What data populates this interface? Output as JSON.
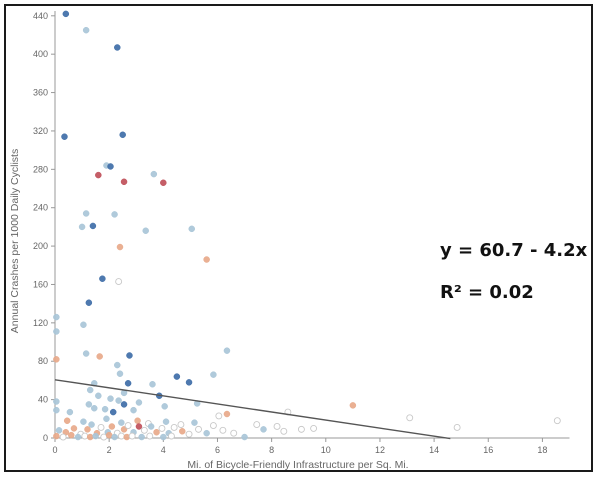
{
  "chart_data": {
    "type": "scatter",
    "xlabel": "Mi. of Bicycle-Friendly Infrastructure per Sq. Mi.",
    "ylabel": "Annual Crashes per 1000 Daily Cyclists",
    "xlim": [
      0,
      19
    ],
    "ylim": [
      0,
      445
    ],
    "x_ticks": [
      0,
      2,
      4,
      6,
      8,
      10,
      12,
      14,
      16,
      18
    ],
    "y_ticks": [
      0,
      40,
      80,
      120,
      160,
      200,
      240,
      280,
      320,
      360,
      400,
      440
    ],
    "grid": false,
    "legend": "none",
    "point_colors": {
      "dark_blue": "#3f6ea8",
      "light_blue": "#a9c6d8",
      "salmon": "#e8a98a",
      "red": "#c0505a",
      "hollow": "#c8c8c8"
    },
    "points": [
      {
        "x": 0.4,
        "y": 442,
        "c": "dark_blue"
      },
      {
        "x": 1.15,
        "y": 425,
        "c": "light_blue"
      },
      {
        "x": 2.3,
        "y": 407,
        "c": "dark_blue"
      },
      {
        "x": 0.35,
        "y": 314,
        "c": "dark_blue"
      },
      {
        "x": 2.5,
        "y": 316,
        "c": "dark_blue"
      },
      {
        "x": 1.9,
        "y": 284,
        "c": "light_blue"
      },
      {
        "x": 2.05,
        "y": 283,
        "c": "dark_blue"
      },
      {
        "x": 1.6,
        "y": 274,
        "c": "red"
      },
      {
        "x": 2.55,
        "y": 267,
        "c": "red"
      },
      {
        "x": 3.65,
        "y": 275,
        "c": "light_blue"
      },
      {
        "x": 4.0,
        "y": 266,
        "c": "red"
      },
      {
        "x": 1.15,
        "y": 234,
        "c": "light_blue"
      },
      {
        "x": 2.2,
        "y": 233,
        "c": "light_blue"
      },
      {
        "x": 1.0,
        "y": 220,
        "c": "light_blue"
      },
      {
        "x": 1.4,
        "y": 221,
        "c": "dark_blue"
      },
      {
        "x": 3.35,
        "y": 216,
        "c": "light_blue"
      },
      {
        "x": 5.05,
        "y": 218,
        "c": "light_blue"
      },
      {
        "x": 2.4,
        "y": 199,
        "c": "salmon"
      },
      {
        "x": 5.6,
        "y": 186,
        "c": "salmon"
      },
      {
        "x": 1.75,
        "y": 166,
        "c": "dark_blue"
      },
      {
        "x": 2.35,
        "y": 163,
        "c": "hollow"
      },
      {
        "x": 1.25,
        "y": 141,
        "c": "dark_blue"
      },
      {
        "x": 0.05,
        "y": 126,
        "c": "light_blue"
      },
      {
        "x": 0.05,
        "y": 111,
        "c": "light_blue"
      },
      {
        "x": 1.05,
        "y": 118,
        "c": "light_blue"
      },
      {
        "x": 0.05,
        "y": 82,
        "c": "salmon"
      },
      {
        "x": 1.15,
        "y": 88,
        "c": "light_blue"
      },
      {
        "x": 1.65,
        "y": 85,
        "c": "salmon"
      },
      {
        "x": 2.75,
        "y": 86,
        "c": "dark_blue"
      },
      {
        "x": 6.35,
        "y": 91,
        "c": "light_blue"
      },
      {
        "x": 2.3,
        "y": 76,
        "c": "light_blue"
      },
      {
        "x": 2.4,
        "y": 67,
        "c": "light_blue"
      },
      {
        "x": 5.85,
        "y": 66,
        "c": "light_blue"
      },
      {
        "x": 4.5,
        "y": 64,
        "c": "dark_blue"
      },
      {
        "x": 4.95,
        "y": 58,
        "c": "dark_blue"
      },
      {
        "x": 1.45,
        "y": 57,
        "c": "light_blue"
      },
      {
        "x": 2.7,
        "y": 57,
        "c": "dark_blue"
      },
      {
        "x": 3.6,
        "y": 56,
        "c": "light_blue"
      },
      {
        "x": 1.3,
        "y": 50,
        "c": "light_blue"
      },
      {
        "x": 2.55,
        "y": 47,
        "c": "light_blue"
      },
      {
        "x": 1.6,
        "y": 44,
        "c": "light_blue"
      },
      {
        "x": 3.85,
        "y": 44,
        "c": "dark_blue"
      },
      {
        "x": 2.05,
        "y": 41,
        "c": "light_blue"
      },
      {
        "x": 2.35,
        "y": 39,
        "c": "light_blue"
      },
      {
        "x": 0.05,
        "y": 38,
        "c": "light_blue"
      },
      {
        "x": 1.25,
        "y": 35,
        "c": "light_blue"
      },
      {
        "x": 2.55,
        "y": 35,
        "c": "dark_blue"
      },
      {
        "x": 3.1,
        "y": 37,
        "c": "light_blue"
      },
      {
        "x": 4.05,
        "y": 33,
        "c": "light_blue"
      },
      {
        "x": 5.25,
        "y": 36,
        "c": "light_blue"
      },
      {
        "x": 11.0,
        "y": 34,
        "c": "salmon"
      },
      {
        "x": 0.05,
        "y": 29,
        "c": "light_blue"
      },
      {
        "x": 0.55,
        "y": 27,
        "c": "light_blue"
      },
      {
        "x": 1.45,
        "y": 31,
        "c": "light_blue"
      },
      {
        "x": 1.85,
        "y": 30,
        "c": "light_blue"
      },
      {
        "x": 2.15,
        "y": 27,
        "c": "dark_blue"
      },
      {
        "x": 2.9,
        "y": 29,
        "c": "light_blue"
      },
      {
        "x": 6.35,
        "y": 25,
        "c": "salmon"
      },
      {
        "x": 6.05,
        "y": 23,
        "c": "hollow"
      },
      {
        "x": 8.6,
        "y": 27,
        "c": "hollow"
      },
      {
        "x": 13.1,
        "y": 21,
        "c": "hollow"
      },
      {
        "x": 18.55,
        "y": 18,
        "c": "hollow"
      },
      {
        "x": 0.45,
        "y": 18,
        "c": "salmon"
      },
      {
        "x": 1.05,
        "y": 17,
        "c": "light_blue"
      },
      {
        "x": 1.9,
        "y": 20,
        "c": "light_blue"
      },
      {
        "x": 2.45,
        "y": 16,
        "c": "light_blue"
      },
      {
        "x": 3.05,
        "y": 18,
        "c": "salmon"
      },
      {
        "x": 3.45,
        "y": 15,
        "c": "hollow"
      },
      {
        "x": 4.1,
        "y": 17,
        "c": "light_blue"
      },
      {
        "x": 4.65,
        "y": 14,
        "c": "hollow"
      },
      {
        "x": 5.15,
        "y": 16,
        "c": "light_blue"
      },
      {
        "x": 5.85,
        "y": 13,
        "c": "hollow"
      },
      {
        "x": 7.45,
        "y": 14,
        "c": "hollow"
      },
      {
        "x": 7.7,
        "y": 9,
        "c": "light_blue"
      },
      {
        "x": 8.2,
        "y": 12,
        "c": "hollow"
      },
      {
        "x": 8.45,
        "y": 7,
        "c": "hollow"
      },
      {
        "x": 9.1,
        "y": 9,
        "c": "hollow"
      },
      {
        "x": 9.55,
        "y": 10,
        "c": "hollow"
      },
      {
        "x": 14.85,
        "y": 11,
        "c": "hollow"
      },
      {
        "x": 0.15,
        "y": 8,
        "c": "light_blue"
      },
      {
        "x": 0.4,
        "y": 6,
        "c": "salmon"
      },
      {
        "x": 0.7,
        "y": 10,
        "c": "salmon"
      },
      {
        "x": 0.95,
        "y": 4,
        "c": "hollow"
      },
      {
        "x": 1.2,
        "y": 9,
        "c": "salmon"
      },
      {
        "x": 1.35,
        "y": 14,
        "c": "light_blue"
      },
      {
        "x": 1.55,
        "y": 5,
        "c": "salmon"
      },
      {
        "x": 1.7,
        "y": 11,
        "c": "hollow"
      },
      {
        "x": 1.95,
        "y": 6,
        "c": "light_blue"
      },
      {
        "x": 2.1,
        "y": 12,
        "c": "salmon"
      },
      {
        "x": 2.3,
        "y": 5,
        "c": "hollow"
      },
      {
        "x": 2.55,
        "y": 9,
        "c": "salmon"
      },
      {
        "x": 2.7,
        "y": 13,
        "c": "hollow"
      },
      {
        "x": 2.9,
        "y": 6,
        "c": "light_blue"
      },
      {
        "x": 3.1,
        "y": 12,
        "c": "red"
      },
      {
        "x": 3.3,
        "y": 8,
        "c": "hollow"
      },
      {
        "x": 3.55,
        "y": 12,
        "c": "light_blue"
      },
      {
        "x": 3.75,
        "y": 6,
        "c": "salmon"
      },
      {
        "x": 3.95,
        "y": 10,
        "c": "hollow"
      },
      {
        "x": 4.2,
        "y": 5,
        "c": "light_blue"
      },
      {
        "x": 4.4,
        "y": 11,
        "c": "hollow"
      },
      {
        "x": 4.7,
        "y": 7,
        "c": "salmon"
      },
      {
        "x": 4.95,
        "y": 4,
        "c": "hollow"
      },
      {
        "x": 5.3,
        "y": 9,
        "c": "hollow"
      },
      {
        "x": 5.6,
        "y": 5,
        "c": "light_blue"
      },
      {
        "x": 6.2,
        "y": 8,
        "c": "hollow"
      },
      {
        "x": 6.6,
        "y": 5,
        "c": "hollow"
      },
      {
        "x": 0.05,
        "y": 2,
        "c": "salmon"
      },
      {
        "x": 0.3,
        "y": 1,
        "c": "hollow"
      },
      {
        "x": 0.6,
        "y": 3,
        "c": "salmon"
      },
      {
        "x": 0.85,
        "y": 1,
        "c": "light_blue"
      },
      {
        "x": 1.1,
        "y": 2,
        "c": "hollow"
      },
      {
        "x": 1.3,
        "y": 1,
        "c": "salmon"
      },
      {
        "x": 1.5,
        "y": 2,
        "c": "light_blue"
      },
      {
        "x": 1.8,
        "y": 1,
        "c": "hollow"
      },
      {
        "x": 2.0,
        "y": 3,
        "c": "salmon"
      },
      {
        "x": 2.2,
        "y": 1,
        "c": "light_blue"
      },
      {
        "x": 2.45,
        "y": 2,
        "c": "hollow"
      },
      {
        "x": 2.65,
        "y": 1,
        "c": "salmon"
      },
      {
        "x": 2.85,
        "y": 2,
        "c": "hollow"
      },
      {
        "x": 3.2,
        "y": 1,
        "c": "light_blue"
      },
      {
        "x": 3.5,
        "y": 2,
        "c": "hollow"
      },
      {
        "x": 4.0,
        "y": 1,
        "c": "light_blue"
      },
      {
        "x": 4.3,
        "y": 2,
        "c": "hollow"
      },
      {
        "x": 7.0,
        "y": 1,
        "c": "light_blue"
      }
    ],
    "trendline": {
      "intercept": 60.7,
      "slope": -4.2,
      "x_range": [
        0,
        14.6
      ],
      "color": "#555555"
    },
    "annotations": {
      "equation": "y = 60.7 - 4.2x",
      "r_squared": "R² = 0.02"
    }
  }
}
